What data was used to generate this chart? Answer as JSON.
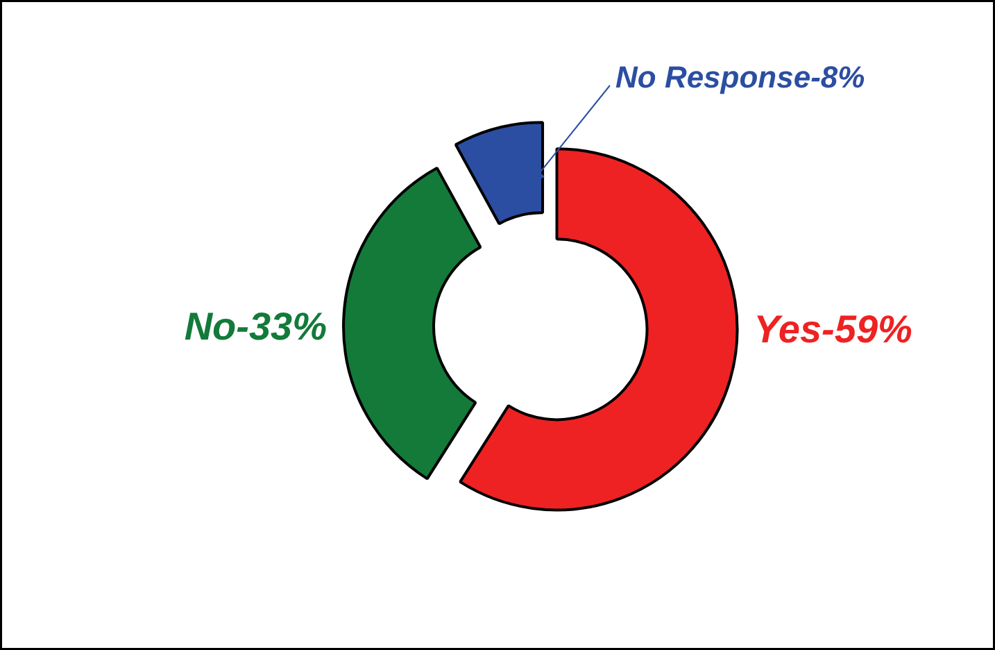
{
  "chart_data": {
    "type": "donut",
    "categories": [
      "Yes-59%",
      "No-33%",
      "No Response-8%"
    ],
    "values": [
      59,
      33,
      8
    ],
    "colors": [
      "#ee2222",
      "#137a3a",
      "#2b4ea2"
    ]
  }
}
